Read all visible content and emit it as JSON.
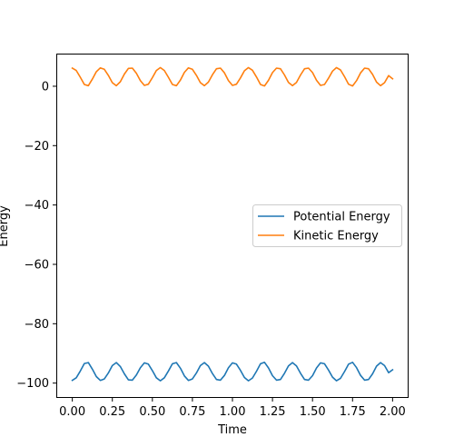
{
  "chart_data": {
    "type": "line",
    "xlabel": "Time",
    "ylabel": "Energy",
    "xlim": [
      -0.1,
      2.1
    ],
    "ylim": [
      -105.0,
      11.0
    ],
    "x_ticks": [
      0.0,
      0.25,
      0.5,
      0.75,
      1.0,
      1.25,
      1.5,
      1.75,
      2.0
    ],
    "x_tick_labels": [
      "0.00",
      "0.25",
      "0.50",
      "0.75",
      "1.00",
      "1.25",
      "1.50",
      "1.75",
      "2.00"
    ],
    "y_ticks": [
      0,
      -20,
      -40,
      -60,
      -80,
      -100
    ],
    "y_tick_labels": [
      "0",
      "−20",
      "−40",
      "−60",
      "−80",
      "−100"
    ],
    "grid": false,
    "legend_position": "center-right",
    "x": [
      0.0,
      0.025,
      0.05,
      0.075,
      0.1,
      0.125,
      0.15,
      0.175,
      0.2,
      0.225,
      0.25,
      0.275,
      0.3,
      0.325,
      0.35,
      0.375,
      0.4,
      0.425,
      0.45,
      0.475,
      0.5,
      0.525,
      0.55,
      0.575,
      0.6,
      0.625,
      0.65,
      0.675,
      0.7,
      0.725,
      0.75,
      0.775,
      0.8,
      0.825,
      0.85,
      0.875,
      0.9,
      0.925,
      0.95,
      0.975,
      1.0,
      1.025,
      1.05,
      1.075,
      1.1,
      1.125,
      1.15,
      1.175,
      1.2,
      1.225,
      1.25,
      1.275,
      1.3,
      1.325,
      1.35,
      1.375,
      1.4,
      1.425,
      1.45,
      1.475,
      1.5,
      1.525,
      1.55,
      1.575,
      1.6,
      1.625,
      1.65,
      1.675,
      1.7,
      1.725,
      1.75,
      1.775,
      1.8,
      1.825,
      1.85,
      1.875,
      1.9,
      1.925,
      1.95,
      1.975,
      2.0
    ],
    "series": [
      {
        "name": "Potential Energy",
        "color": "#1f77b4",
        "values": [
          -99.1,
          -98.2,
          -95.9,
          -93.4,
          -93.1,
          -95.3,
          -97.8,
          -99.1,
          -98.6,
          -96.6,
          -94.1,
          -93.1,
          -94.4,
          -96.9,
          -98.9,
          -99.0,
          -97.3,
          -94.8,
          -93.2,
          -93.6,
          -95.8,
          -98.2,
          -99.2,
          -98.2,
          -95.9,
          -93.5,
          -93.1,
          -95.0,
          -97.6,
          -99.1,
          -98.6,
          -96.6,
          -94.1,
          -93.1,
          -94.3,
          -96.8,
          -98.8,
          -99.0,
          -97.4,
          -94.8,
          -93.2,
          -93.6,
          -95.7,
          -98.1,
          -99.2,
          -98.3,
          -96.0,
          -93.5,
          -93.0,
          -94.9,
          -97.5,
          -99.0,
          -98.8,
          -96.7,
          -94.2,
          -93.1,
          -94.2,
          -96.7,
          -98.8,
          -99.0,
          -97.5,
          -94.9,
          -93.2,
          -93.5,
          -95.6,
          -98.0,
          -99.2,
          -98.4,
          -96.1,
          -93.6,
          -93.0,
          -94.8,
          -97.4,
          -99.0,
          -98.8,
          -96.9,
          -94.3,
          -93.1,
          -94.1,
          -96.5,
          -95.5
        ]
      },
      {
        "name": "Kinetic Energy",
        "color": "#ff7f0e",
        "values": [
          6.1,
          5.3,
          3.0,
          0.6,
          0.2,
          2.4,
          4.9,
          6.2,
          5.7,
          3.7,
          1.2,
          0.2,
          1.5,
          4.1,
          6.0,
          6.1,
          4.4,
          1.9,
          0.3,
          0.7,
          2.9,
          5.3,
          6.3,
          5.3,
          3.0,
          0.6,
          0.2,
          2.1,
          4.7,
          6.2,
          5.7,
          3.7,
          1.2,
          0.2,
          1.4,
          3.9,
          5.9,
          6.1,
          4.5,
          1.9,
          0.3,
          0.7,
          2.8,
          5.2,
          6.3,
          5.4,
          3.1,
          0.6,
          0.1,
          2.0,
          4.6,
          6.1,
          5.9,
          3.8,
          1.3,
          0.2,
          1.3,
          3.8,
          5.9,
          6.1,
          4.6,
          2.0,
          0.3,
          0.6,
          2.7,
          5.1,
          6.3,
          5.5,
          3.2,
          0.7,
          0.1,
          1.9,
          4.5,
          6.1,
          5.9,
          4.0,
          1.4,
          0.2,
          1.2,
          3.6,
          2.5
        ]
      }
    ]
  }
}
